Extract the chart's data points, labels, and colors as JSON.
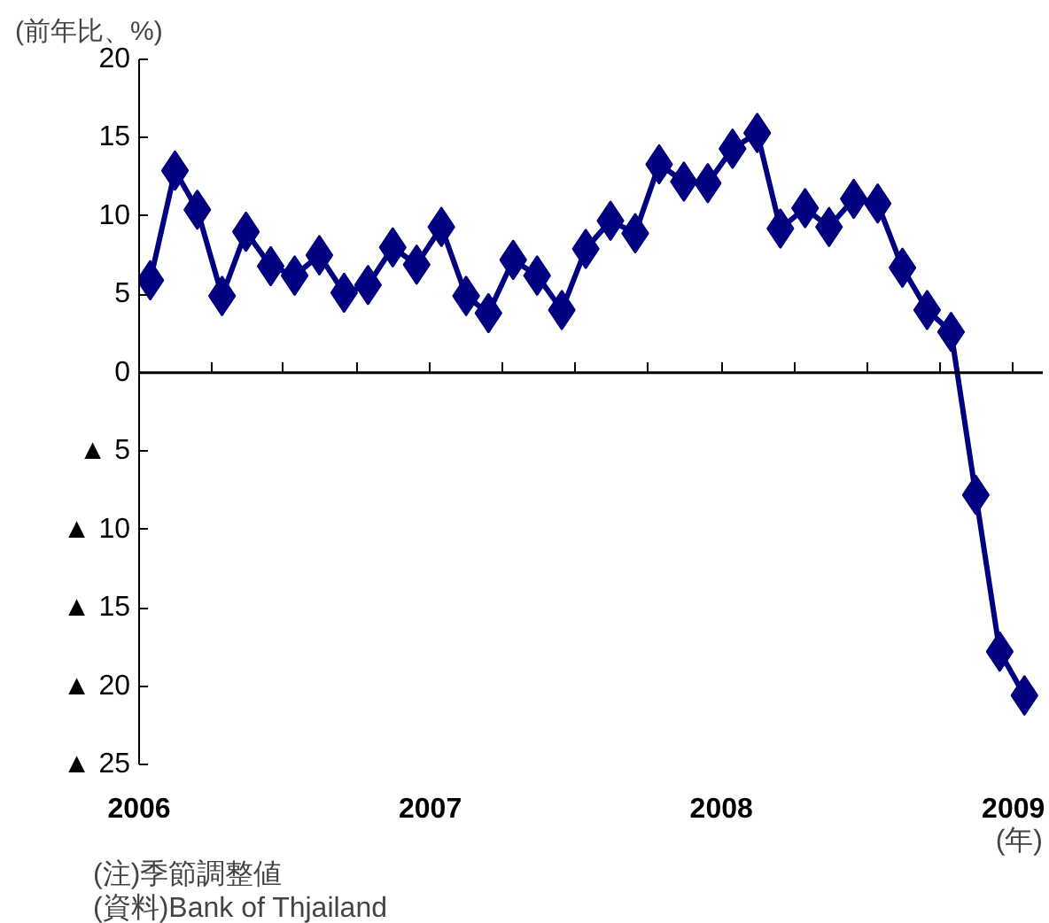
{
  "chart_data": {
    "type": "line",
    "ylabel": "(前年比、%)",
    "xlabel": "(年)",
    "annotations": [
      "(注)季節調整値",
      "(資料)Bank of Thjailand"
    ],
    "x": [
      "2006-01-15",
      "2006-02-15",
      "2006-03-15",
      "2006-04-15",
      "2006-05-15",
      "2006-06-15",
      "2006-07-15",
      "2006-08-15",
      "2006-09-15",
      "2006-10-15",
      "2006-11-15",
      "2006-12-15",
      "2007-01-15",
      "2007-02-15",
      "2007-03-15",
      "2007-04-15",
      "2007-05-15",
      "2007-06-15",
      "2007-07-15",
      "2007-08-15",
      "2007-09-15",
      "2007-10-15",
      "2007-11-15",
      "2007-12-15",
      "2008-01-15",
      "2008-02-15",
      "2008-03-15",
      "2008-04-15",
      "2008-05-15",
      "2008-06-15",
      "2008-07-15",
      "2008-08-15",
      "2008-09-15",
      "2008-10-15",
      "2008-11-15",
      "2008-12-15",
      "2009-01-15"
    ],
    "series": [
      {
        "color": "#000080",
        "values": [
          5.9,
          12.9,
          10.4,
          4.9,
          9.0,
          6.8,
          6.2,
          7.5,
          5.1,
          5.6,
          8.0,
          6.9,
          9.3,
          4.9,
          3.8,
          7.2,
          6.2,
          4.0,
          7.9,
          9.7,
          8.9,
          13.3,
          12.2,
          12.1,
          14.3,
          15.3,
          9.2,
          10.5,
          9.3,
          11.1,
          10.8,
          6.7,
          4.0,
          2.6,
          -7.8,
          -17.8,
          -20.6
        ]
      }
    ],
    "marker": "diamond",
    "line_style": "solid",
    "ref_lines": [
      {
        "axis": "y",
        "value": 0,
        "color": "#000000"
      }
    ],
    "xlim": [
      "2006-01-01",
      "2009-02-07"
    ],
    "xticks": [
      {
        "value": "2006-01-01",
        "label": "2006"
      },
      {
        "value": "2006-04-01",
        "label": null
      },
      {
        "value": "2006-07-01",
        "label": null
      },
      {
        "value": "2006-10-01",
        "label": null
      },
      {
        "value": "2007-01-01",
        "label": "2007"
      },
      {
        "value": "2007-04-01",
        "label": null
      },
      {
        "value": "2007-07-01",
        "label": null
      },
      {
        "value": "2007-10-01",
        "label": null
      },
      {
        "value": "2008-01-01",
        "label": "2008"
      },
      {
        "value": "2008-04-01",
        "label": null
      },
      {
        "value": "2008-07-01",
        "label": null
      },
      {
        "value": "2008-10-01",
        "label": null
      },
      {
        "value": "2009-01-01",
        "label": "2009"
      }
    ],
    "ylim": [
      -25,
      20
    ],
    "yticks": [
      20,
      15,
      10,
      5,
      0,
      {
        "value": -5,
        "label": "▲ 5"
      },
      {
        "value": -10,
        "label": "▲ 10"
      },
      {
        "value": -15,
        "label": "▲ 15"
      },
      {
        "value": -20,
        "label": "▲ 20"
      },
      {
        "value": -25,
        "label": "▲ 25"
      }
    ]
  }
}
